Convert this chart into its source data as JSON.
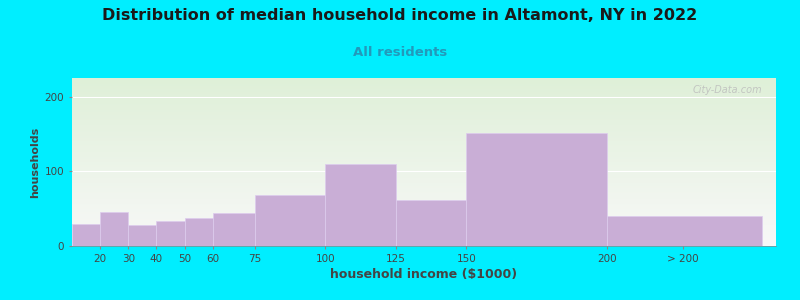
{
  "title": "Distribution of median household income in Altamont, NY in 2022",
  "subtitle": "All residents",
  "xlabel": "household income ($1000)",
  "ylabel": "households",
  "bar_values": [
    30,
    45,
    28,
    34,
    38,
    44,
    68,
    110,
    62,
    152,
    40
  ],
  "bar_color": "#c9aed6",
  "bar_edgecolor": "#ddccee",
  "background_color": "#00eeff",
  "plot_bg_color_top": "#dff0d8",
  "plot_bg_color_bottom": "#f8f8f8",
  "yticks": [
    0,
    100,
    200
  ],
  "ylim": [
    0,
    225
  ],
  "xlim_left": 10,
  "xlim_right": 260,
  "title_fontsize": 11.5,
  "subtitle_fontsize": 9.5,
  "subtitle_color": "#2299bb",
  "watermark": "City-Data.com",
  "bar_lefts": [
    10,
    20,
    30,
    40,
    50,
    60,
    75,
    100,
    125,
    150,
    200
  ],
  "bar_widths": [
    10,
    10,
    10,
    10,
    10,
    15,
    25,
    25,
    25,
    50,
    55
  ],
  "xtick_positions": [
    20,
    30,
    40,
    50,
    60,
    75,
    100,
    125,
    150,
    200,
    227
  ],
  "xtick_labels": [
    "20",
    "30",
    "40",
    "50",
    "60",
    "75",
    "100",
    "125",
    "150",
    "200",
    "> 200"
  ]
}
